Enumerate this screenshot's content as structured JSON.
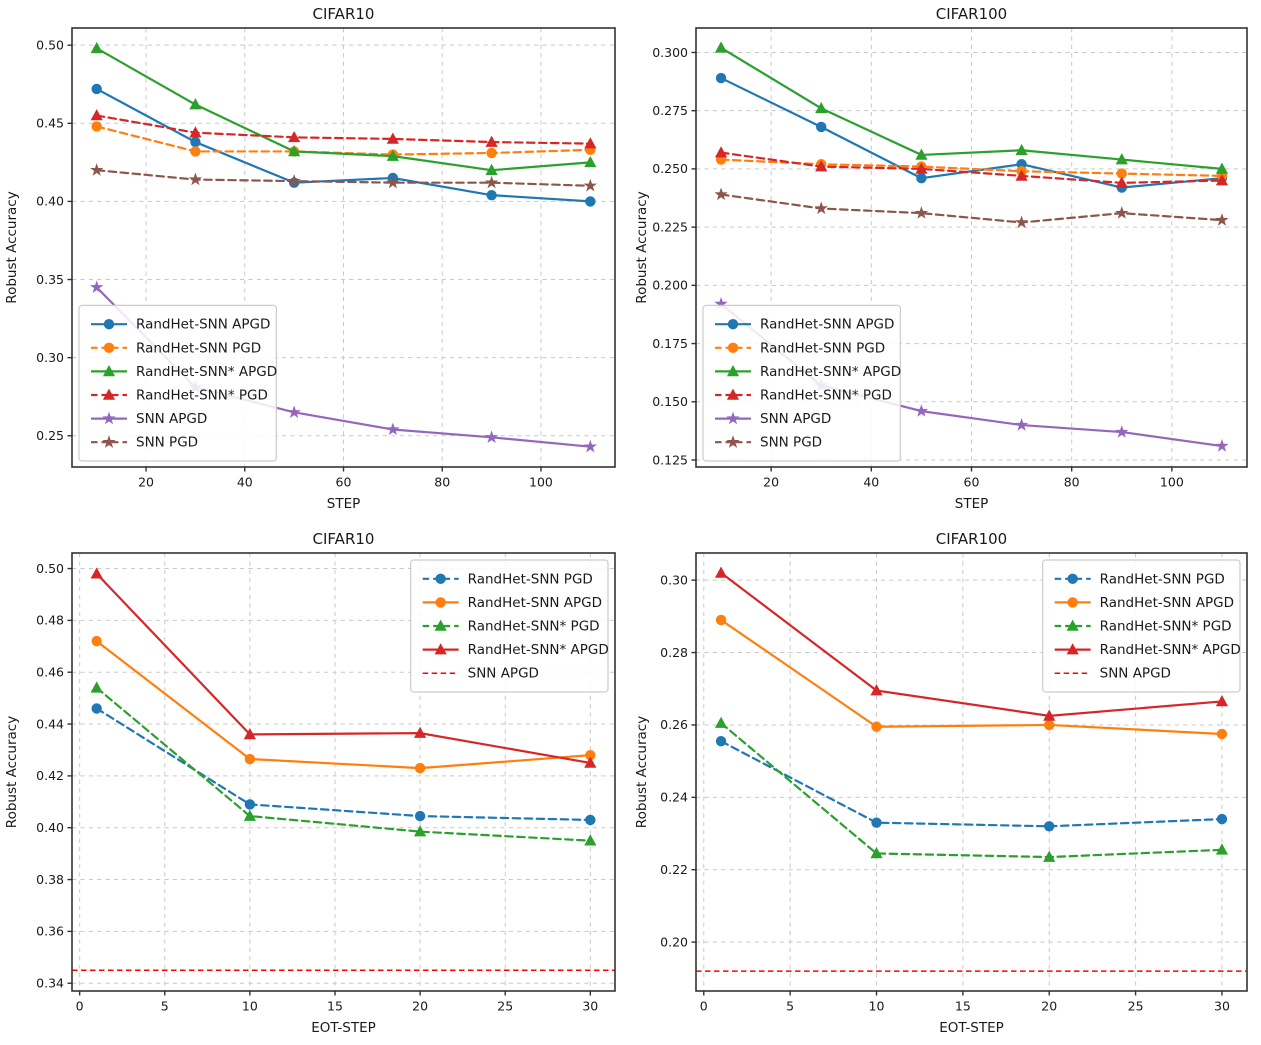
{
  "page": {
    "background": "#ffffff"
  },
  "chart_data": [
    {
      "type": "line",
      "title": "CIFAR10",
      "xlabel": "STEP",
      "ylabel": "Robust Accuracy",
      "xlim": [
        5,
        115
      ],
      "ylim": [
        0.23,
        0.511
      ],
      "xticks": [
        20,
        40,
        60,
        80,
        100
      ],
      "xtick_labels": [
        "20",
        "40",
        "60",
        "80",
        "100"
      ],
      "yticks": [
        0.25,
        0.3,
        0.35,
        0.4,
        0.45,
        0.5
      ],
      "ytick_labels": [
        "0.25",
        "0.30",
        "0.35",
        "0.40",
        "0.45",
        "0.50"
      ],
      "grid": true,
      "legend_loc": "lower-left",
      "x": [
        10,
        30,
        50,
        70,
        90,
        110
      ],
      "series": [
        {
          "name": "RandHet-SNN APGD",
          "color": "#1f77b4",
          "linestyle": "solid",
          "marker": "circle",
          "values": [
            0.472,
            0.438,
            0.412,
            0.415,
            0.404,
            0.4
          ]
        },
        {
          "name": "RandHet-SNN PGD",
          "color": "#ff7f0e",
          "linestyle": "dashed",
          "marker": "circle",
          "values": [
            0.448,
            0.432,
            0.432,
            0.43,
            0.431,
            0.433
          ]
        },
        {
          "name": "RandHet-SNN* APGD",
          "color": "#2ca02c",
          "linestyle": "solid",
          "marker": "triangle",
          "values": [
            0.498,
            0.462,
            0.432,
            0.429,
            0.42,
            0.425
          ]
        },
        {
          "name": "RandHet-SNN* PGD",
          "color": "#d62728",
          "linestyle": "dashed",
          "marker": "triangle",
          "values": [
            0.455,
            0.444,
            0.441,
            0.44,
            0.438,
            0.437
          ]
        },
        {
          "name": "SNN APGD",
          "color": "#9467bd",
          "linestyle": "solid",
          "marker": "star",
          "values": [
            0.345,
            0.281,
            0.265,
            0.254,
            0.249,
            0.243
          ]
        },
        {
          "name": "SNN PGD",
          "color": "#8c564b",
          "linestyle": "dashed",
          "marker": "star",
          "values": [
            0.42,
            0.414,
            0.413,
            0.412,
            0.412,
            0.41
          ]
        }
      ]
    },
    {
      "type": "line",
      "title": "CIFAR100",
      "xlabel": "STEP",
      "ylabel": "Robust Accuracy",
      "xlim": [
        5,
        115
      ],
      "ylim": [
        0.122,
        0.3105
      ],
      "xticks": [
        20,
        40,
        60,
        80,
        100
      ],
      "xtick_labels": [
        "20",
        "40",
        "60",
        "80",
        "100"
      ],
      "yticks": [
        0.125,
        0.15,
        0.175,
        0.2,
        0.225,
        0.25,
        0.275,
        0.3
      ],
      "ytick_labels": [
        "0.125",
        "0.150",
        "0.175",
        "0.200",
        "0.225",
        "0.250",
        "0.275",
        "0.300"
      ],
      "grid": true,
      "legend_loc": "lower-left",
      "x": [
        10,
        30,
        50,
        70,
        90,
        110
      ],
      "series": [
        {
          "name": "RandHet-SNN APGD",
          "color": "#1f77b4",
          "linestyle": "solid",
          "marker": "circle",
          "values": [
            0.289,
            0.268,
            0.246,
            0.252,
            0.242,
            0.246
          ]
        },
        {
          "name": "RandHet-SNN PGD",
          "color": "#ff7f0e",
          "linestyle": "dashed",
          "marker": "circle",
          "values": [
            0.254,
            0.252,
            0.251,
            0.249,
            0.248,
            0.247
          ]
        },
        {
          "name": "RandHet-SNN* APGD",
          "color": "#2ca02c",
          "linestyle": "solid",
          "marker": "triangle",
          "values": [
            0.302,
            0.276,
            0.256,
            0.258,
            0.254,
            0.25
          ]
        },
        {
          "name": "RandHet-SNN* PGD",
          "color": "#d62728",
          "linestyle": "dashed",
          "marker": "triangle",
          "values": [
            0.257,
            0.251,
            0.25,
            0.247,
            0.244,
            0.245
          ]
        },
        {
          "name": "SNN APGD",
          "color": "#9467bd",
          "linestyle": "solid",
          "marker": "star",
          "values": [
            0.192,
            0.157,
            0.146,
            0.14,
            0.137,
            0.131
          ]
        },
        {
          "name": "SNN PGD",
          "color": "#8c564b",
          "linestyle": "dashed",
          "marker": "star",
          "values": [
            0.239,
            0.233,
            0.231,
            0.227,
            0.231,
            0.228
          ]
        }
      ]
    },
    {
      "type": "line",
      "title": "CIFAR10",
      "xlabel": "EOT-STEP",
      "ylabel": "Robust Accuracy",
      "xlim": [
        -0.45,
        31.45
      ],
      "ylim": [
        0.337,
        0.506
      ],
      "xticks": [
        0,
        5,
        10,
        15,
        20,
        25,
        30
      ],
      "xtick_labels": [
        "0",
        "5",
        "10",
        "15",
        "20",
        "25",
        "30"
      ],
      "yticks": [
        0.34,
        0.36,
        0.38,
        0.4,
        0.42,
        0.44,
        0.46,
        0.48,
        0.5
      ],
      "ytick_labels": [
        "0.34",
        "0.36",
        "0.38",
        "0.40",
        "0.42",
        "0.44",
        "0.46",
        "0.48",
        "0.50"
      ],
      "grid": true,
      "legend_loc": "upper-right",
      "x": [
        1,
        10,
        20,
        30
      ],
      "series": [
        {
          "name": "RandHet-SNN PGD",
          "color": "#1f77b4",
          "linestyle": "dashed",
          "marker": "circle",
          "values": [
            0.446,
            0.409,
            0.4045,
            0.403
          ]
        },
        {
          "name": "RandHet-SNN APGD",
          "color": "#ff7f0e",
          "linestyle": "solid",
          "marker": "circle",
          "values": [
            0.472,
            0.4265,
            0.423,
            0.428
          ]
        },
        {
          "name": "RandHet-SNN* PGD",
          "color": "#2ca02c",
          "linestyle": "dashed",
          "marker": "triangle",
          "values": [
            0.454,
            0.4045,
            0.3985,
            0.395
          ]
        },
        {
          "name": "RandHet-SNN* APGD",
          "color": "#d62728",
          "linestyle": "solid",
          "marker": "triangle",
          "values": [
            0.498,
            0.436,
            0.4365,
            0.425
          ]
        }
      ],
      "hline": {
        "name": "SNN APGD",
        "color": "#ff0000",
        "linestyle": "dashed",
        "y": 0.345
      }
    },
    {
      "type": "line",
      "title": "CIFAR100",
      "xlabel": "EOT-STEP",
      "ylabel": "Robust Accuracy",
      "xlim": [
        -0.45,
        31.45
      ],
      "ylim": [
        0.1865,
        0.3075
      ],
      "xticks": [
        0,
        5,
        10,
        15,
        20,
        25,
        30
      ],
      "xtick_labels": [
        "0",
        "5",
        "10",
        "15",
        "20",
        "25",
        "30"
      ],
      "yticks": [
        0.2,
        0.22,
        0.24,
        0.26,
        0.28,
        0.3
      ],
      "ytick_labels": [
        "0.20",
        "0.22",
        "0.24",
        "0.26",
        "0.28",
        "0.30"
      ],
      "grid": true,
      "legend_loc": "upper-right",
      "x": [
        1,
        10,
        20,
        30
      ],
      "series": [
        {
          "name": "RandHet-SNN PGD",
          "color": "#1f77b4",
          "linestyle": "dashed",
          "marker": "circle",
          "values": [
            0.2555,
            0.233,
            0.232,
            0.234
          ]
        },
        {
          "name": "RandHet-SNN APGD",
          "color": "#ff7f0e",
          "linestyle": "solid",
          "marker": "circle",
          "values": [
            0.289,
            0.2595,
            0.26,
            0.2575
          ]
        },
        {
          "name": "RandHet-SNN* PGD",
          "color": "#2ca02c",
          "linestyle": "dashed",
          "marker": "triangle",
          "values": [
            0.2605,
            0.2245,
            0.2235,
            0.2255
          ]
        },
        {
          "name": "RandHet-SNN* APGD",
          "color": "#d62728",
          "linestyle": "solid",
          "marker": "triangle",
          "values": [
            0.302,
            0.2695,
            0.2625,
            0.2665
          ]
        }
      ],
      "hline": {
        "name": "SNN APGD",
        "color": "#ff0000",
        "linestyle": "dashed",
        "y": 0.192
      }
    }
  ]
}
